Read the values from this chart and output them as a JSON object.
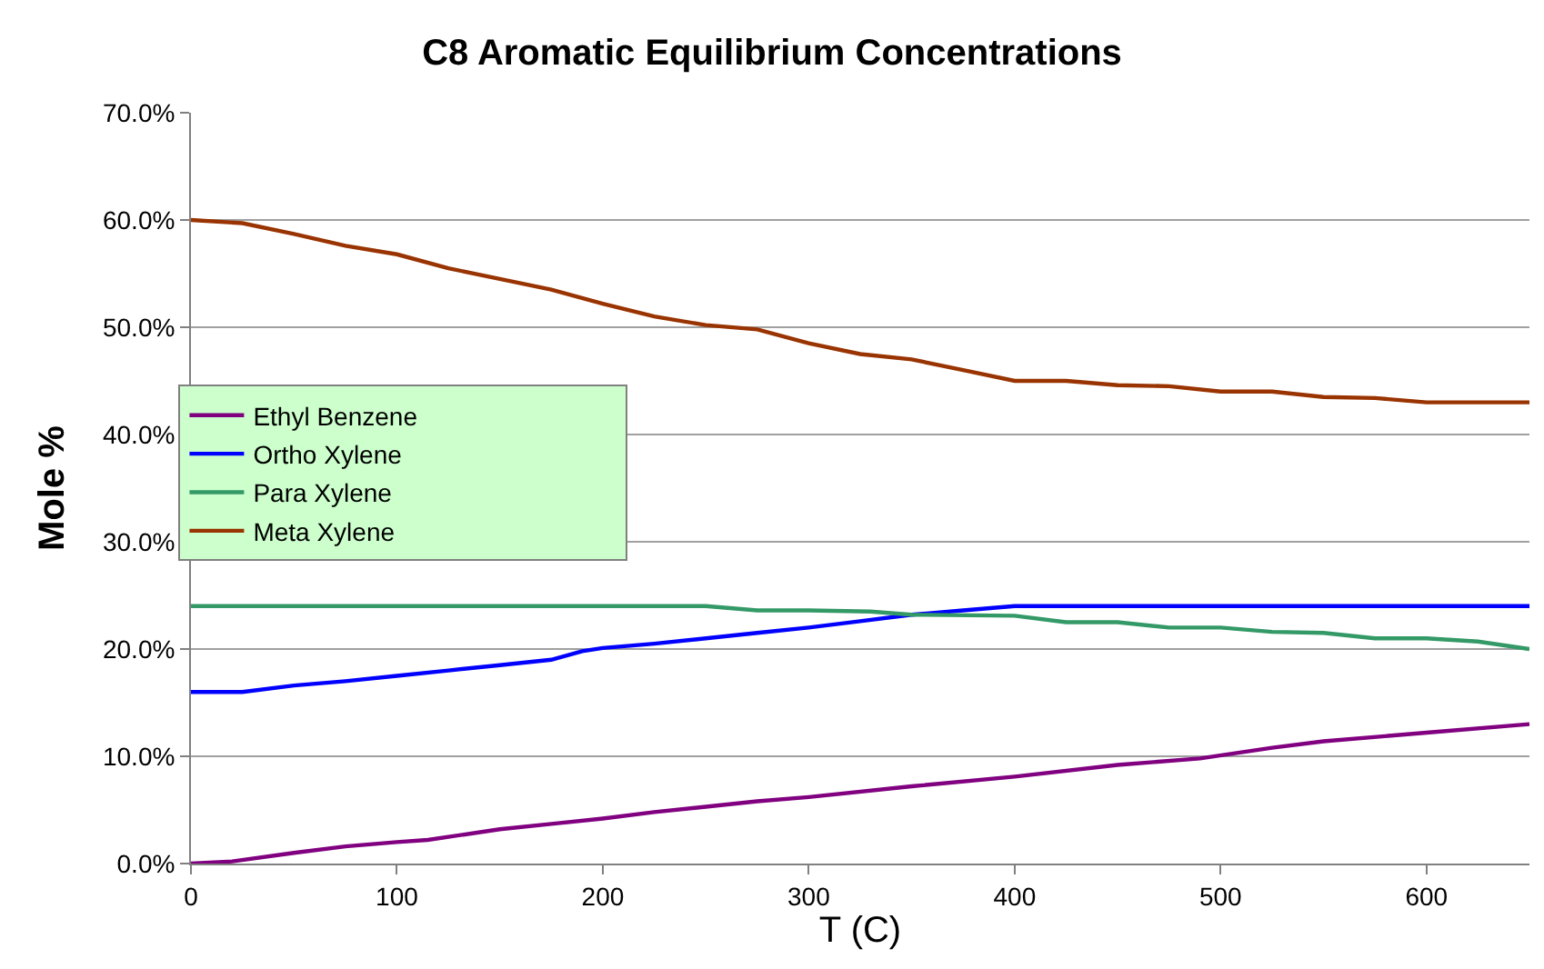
{
  "chart_data": {
    "type": "line",
    "title": "C8 Aromatic Equilibrium Concentrations",
    "xlabel": "T (C)",
    "ylabel": "Mole %",
    "xlim": [
      0,
      650
    ],
    "xticks": [
      0,
      100,
      200,
      300,
      400,
      500,
      600
    ],
    "ylim": [
      0,
      70
    ],
    "yticks": [
      {
        "value": 0,
        "label": "0.0%"
      },
      {
        "value": 10,
        "label": "10.0%"
      },
      {
        "value": 20,
        "label": "20.0%"
      },
      {
        "value": 30,
        "label": "30.0%"
      },
      {
        "value": 40,
        "label": "40.0%"
      },
      {
        "value": 50,
        "label": "50.0%"
      },
      {
        "value": 60,
        "label": "60.0%"
      },
      {
        "value": 70,
        "label": "70.0%"
      }
    ],
    "grid": "y",
    "legend": "left",
    "marker": "none",
    "line_style": "solid",
    "series": [
      {
        "name": "Ethyl Benzene",
        "color": "#800080",
        "x": [
          0,
          20,
          50,
          75,
          100,
          115,
          150,
          175,
          200,
          225,
          250,
          275,
          300,
          350,
          400,
          450,
          490,
          525,
          550,
          600,
          650
        ],
        "values": [
          0,
          0.2,
          1,
          1.6,
          2,
          2.2,
          3.2,
          3.7,
          4.2,
          4.8,
          5.3,
          5.8,
          6.2,
          7.2,
          8.1,
          9.2,
          9.8,
          10.8,
          11.4,
          12.2,
          13
        ]
      },
      {
        "name": "Ortho Xylene",
        "color": "#0000ff",
        "x": [
          0,
          25,
          50,
          75,
          100,
          125,
          150,
          175,
          190,
          200,
          225,
          250,
          275,
          300,
          325,
          350,
          375,
          400,
          650
        ],
        "values": [
          16,
          16,
          16.6,
          17,
          17.5,
          18,
          18.5,
          19,
          19.8,
          20.1,
          20.5,
          21,
          21.5,
          22,
          22.6,
          23.2,
          23.6,
          24,
          24
        ]
      },
      {
        "name": "Para Xylene",
        "color": "#339966",
        "x": [
          0,
          250,
          275,
          300,
          330,
          350,
          400,
          425,
          450,
          475,
          500,
          525,
          550,
          575,
          600,
          625,
          650
        ],
        "values": [
          24,
          24,
          23.6,
          23.6,
          23.5,
          23.2,
          23.1,
          22.5,
          22.5,
          22,
          22,
          21.6,
          21.5,
          21,
          21,
          20.7,
          20
        ]
      },
      {
        "name": "Meta Xylene",
        "color": "#993300",
        "x": [
          0,
          25,
          50,
          75,
          100,
          125,
          150,
          175,
          200,
          225,
          250,
          275,
          300,
          325,
          350,
          375,
          400,
          425,
          450,
          475,
          500,
          525,
          550,
          575,
          600,
          650
        ],
        "values": [
          60,
          59.7,
          58.7,
          57.6,
          56.8,
          55.5,
          54.5,
          53.5,
          52.2,
          51,
          50.2,
          49.8,
          48.5,
          47.5,
          47,
          46,
          45,
          45,
          44.6,
          44.5,
          44,
          44,
          43.5,
          43.4,
          43,
          43
        ]
      }
    ]
  }
}
